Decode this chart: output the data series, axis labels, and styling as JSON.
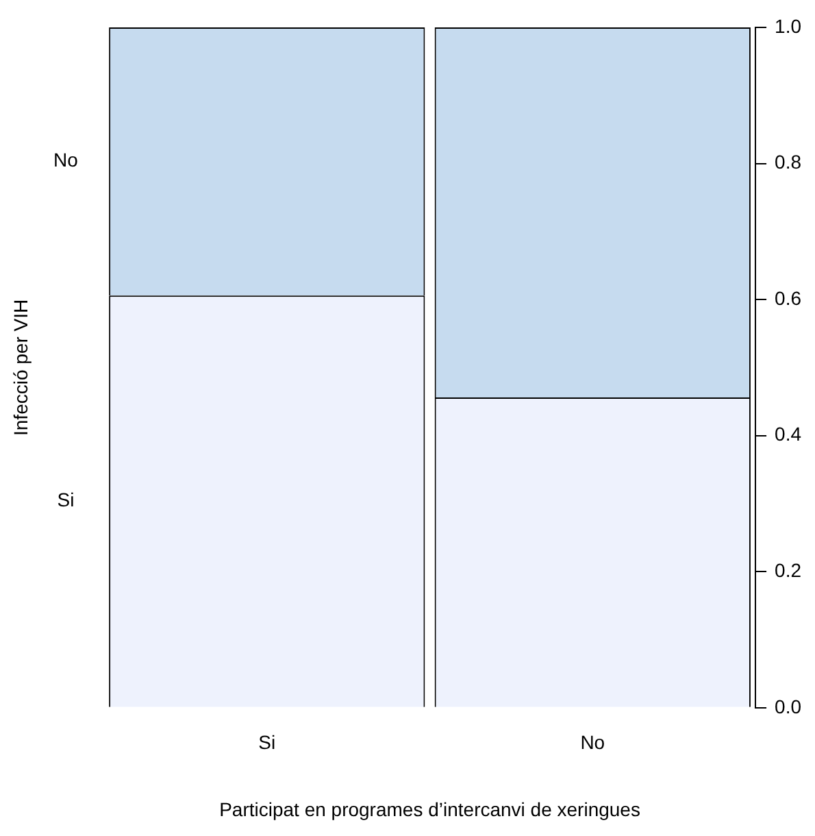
{
  "chart_data": {
    "type": "bar",
    "stacked": true,
    "xlabel": "Participat en programes d’intercanvi de xeringues",
    "ylabel": "Infecció per VIH",
    "categories": [
      "Si",
      "No"
    ],
    "series": [
      {
        "name": "Si",
        "color": "#eef2fd",
        "values": [
          0.606,
          0.456
        ]
      },
      {
        "name": "No",
        "color": "#c6dbef",
        "values": [
          0.394,
          0.544
        ]
      }
    ],
    "ylim": [
      0,
      1
    ],
    "yticks": [
      {
        "value": 0,
        "label": "0.0"
      },
      {
        "value": 0.2,
        "label": "0.2"
      },
      {
        "value": 0.4,
        "label": "0.4"
      },
      {
        "value": 0.6,
        "label": "0.6"
      },
      {
        "value": 0.8,
        "label": "0.8"
      },
      {
        "value": 1,
        "label": "1.0"
      }
    ],
    "grid": false,
    "legend": false
  }
}
